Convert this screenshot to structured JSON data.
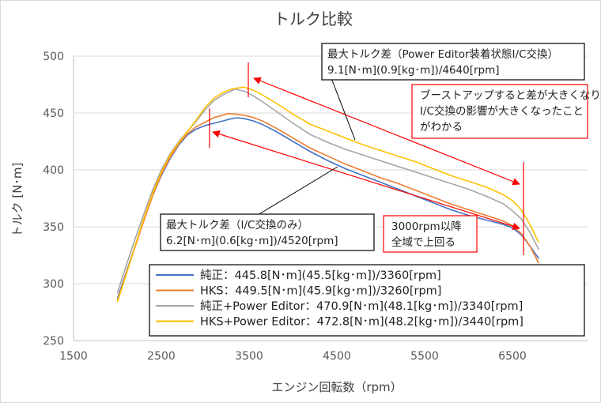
{
  "chart_data": {
    "type": "line",
    "title": "トルク比較",
    "xlabel": "エンジン回転数（rpm）",
    "ylabel": "トルク [N･m]",
    "xlim": [
      1500,
      7500
    ],
    "ylim": [
      250,
      500
    ],
    "xticks": [
      1500,
      2500,
      3500,
      4500,
      5500,
      6500
    ],
    "yticks": [
      250,
      300,
      350,
      400,
      450,
      500
    ],
    "grid": true,
    "series": [
      {
        "name": "純正",
        "legend": "純正：445.8[N･m](45.5[kg･m])/3360[rpm]",
        "color": "#4472c4",
        "x": [
          2000,
          2100,
          2200,
          2300,
          2400,
          2500,
          2600,
          2700,
          2800,
          2900,
          3000,
          3100,
          3200,
          3300,
          3360,
          3450,
          3550,
          3650,
          3800,
          4000,
          4200,
          4400,
          4600,
          4800,
          5000,
          5200,
          5400,
          5600,
          5800,
          6000,
          6200,
          6400,
          6500,
          6600,
          6700,
          6800
        ],
        "y": [
          287,
          310,
          333,
          356,
          377,
          395,
          410,
          422,
          431,
          436,
          439,
          441,
          443,
          445,
          445.8,
          445,
          443,
          440,
          434,
          425,
          416,
          408,
          401,
          395,
          389,
          383,
          377,
          371,
          365,
          360,
          356,
          352,
          349,
          343,
          333,
          322
        ]
      },
      {
        "name": "HKS",
        "legend": "HKS：449.5[N･m](45.9[kg･m])/3260[rpm]",
        "color": "#ed7d31",
        "x": [
          2000,
          2100,
          2200,
          2300,
          2400,
          2500,
          2600,
          2700,
          2800,
          2900,
          3000,
          3100,
          3260,
          3350,
          3450,
          3550,
          3650,
          3800,
          4000,
          4200,
          4400,
          4600,
          4800,
          5000,
          5200,
          5400,
          5600,
          5800,
          6000,
          6200,
          6400,
          6500,
          6600,
          6700,
          6800
        ],
        "y": [
          285,
          309,
          332,
          355,
          377,
          396,
          411,
          423,
          432,
          438,
          442,
          446,
          449.5,
          449,
          448,
          446,
          443,
          437,
          428,
          419,
          412,
          405,
          399,
          393,
          388,
          382,
          376,
          370,
          365,
          360,
          355,
          351,
          344,
          333,
          318
        ]
      },
      {
        "name": "純正+Power Editor",
        "legend": "純正+Power Editor：470.9[N･m](48.1[kg･m])/3340[rpm]",
        "color": "#a5a5a5",
        "x": [
          2000,
          2100,
          2200,
          2300,
          2400,
          2500,
          2600,
          2700,
          2800,
          2900,
          3000,
          3100,
          3200,
          3340,
          3450,
          3550,
          3650,
          3800,
          4000,
          4200,
          4400,
          4600,
          4800,
          5000,
          5200,
          5400,
          5600,
          5800,
          6000,
          6200,
          6400,
          6500,
          6600,
          6700,
          6800
        ],
        "y": [
          292,
          316,
          339,
          361,
          382,
          400,
          414,
          425,
          434,
          443,
          453,
          461,
          466,
          470.9,
          469,
          465,
          460,
          452,
          441,
          431,
          424,
          418,
          413,
          408,
          403,
          398,
          393,
          388,
          383,
          377,
          370,
          364,
          357,
          345,
          330
        ]
      },
      {
        "name": "HKS+Power Editor",
        "legend": "HKS+Power Editor：472.8[N･m](48.2[kg･m])/3440[rpm]",
        "color": "#ffc000",
        "x": [
          2000,
          2100,
          2200,
          2300,
          2400,
          2500,
          2600,
          2700,
          2800,
          2900,
          3000,
          3100,
          3200,
          3300,
          3440,
          3550,
          3650,
          3800,
          4000,
          4200,
          4400,
          4600,
          4800,
          5000,
          5200,
          5400,
          5600,
          5800,
          6000,
          6200,
          6400,
          6500,
          6600,
          6700,
          6800
        ],
        "y": [
          284,
          308,
          333,
          357,
          379,
          398,
          413,
          424,
          434,
          444,
          455,
          463,
          468,
          471,
          472.8,
          470,
          466,
          459,
          449,
          440,
          434,
          428,
          422,
          417,
          412,
          407,
          401,
          395,
          390,
          385,
          378,
          373,
          365,
          352,
          336
        ]
      }
    ],
    "annotations": [
      {
        "id": "pe",
        "lines": [
          "最大トルク差（Power Editor装着状態I/C交換）",
          "9.1[N･m](0.9[kg･m])/4640[rpm]"
        ]
      },
      {
        "id": "ic",
        "lines": [
          "最大トルク差（I/C交換のみ）",
          "6.2[N･m](0.6[kg･m])/4520[rpm]"
        ]
      },
      {
        "id": "boost",
        "lines": [
          "ブーストアップすると差が大きくなり",
          "I/C交換の影響が大きくなったこと",
          "がわかる"
        ]
      },
      {
        "id": "whole",
        "lines": [
          "3000rpm以降",
          "全域で上回る"
        ]
      }
    ]
  },
  "colors": {
    "annotation_red": "#ff0000",
    "grid": "#d9d9d9",
    "axis": "#bfbfbf"
  }
}
